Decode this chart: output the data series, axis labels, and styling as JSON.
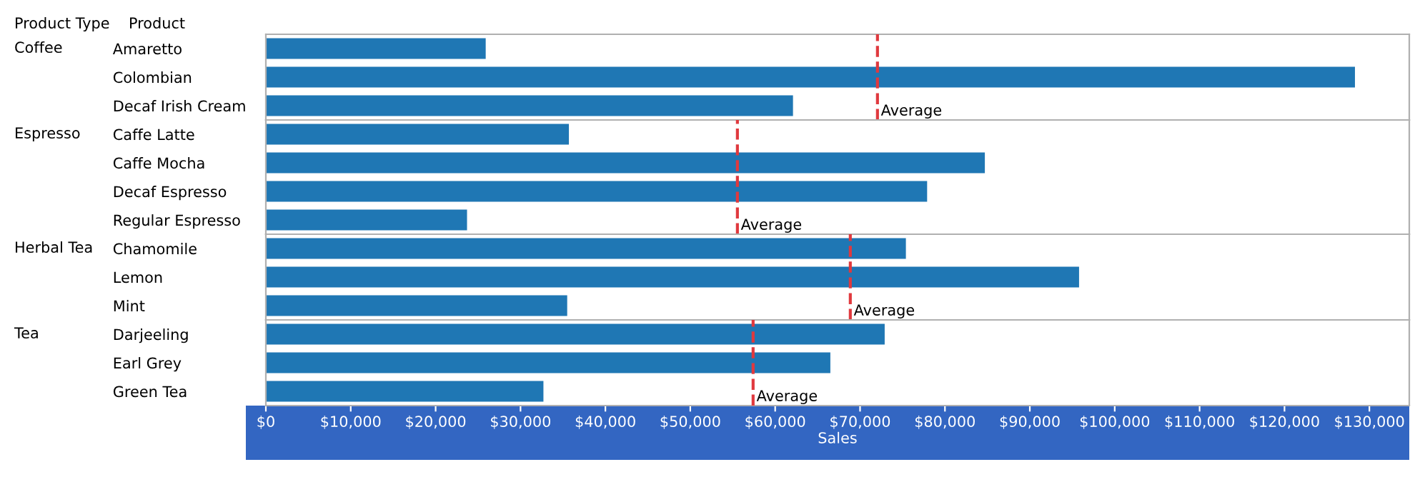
{
  "chart_data": [
    {
      "type": "bar",
      "orientation": "horizontal",
      "ylabel": "Coffee",
      "annotations": [
        "Product Type",
        "Product"
      ],
      "categories": [
        "Amaretto",
        "Colombian",
        "Decaf Irish Cream"
      ],
      "values": [
        25900,
        128300,
        62100
      ],
      "color": "#1f77b4",
      "xlim": [
        0,
        134700
      ],
      "tick_labels": "y",
      "grid": false,
      "legend": false,
      "ref_lines": [
        {
          "axis": "x",
          "value": 72050,
          "label": "Average",
          "color": "#e0393e",
          "line_style": "dashed"
        }
      ]
    },
    {
      "type": "bar",
      "orientation": "horizontal",
      "ylabel": "Espresso",
      "categories": [
        "Caffe Latte",
        "Caffe Mocha",
        "Decaf Espresso",
        "Regular Espresso"
      ],
      "values": [
        35700,
        84700,
        77900,
        23700
      ],
      "color": "#1f77b4",
      "xlim": [
        0,
        134700
      ],
      "tick_labels": "y",
      "grid": false,
      "legend": false,
      "ref_lines": [
        {
          "axis": "x",
          "value": 55550,
          "label": "Average",
          "color": "#e0393e",
          "line_style": "dashed"
        }
      ]
    },
    {
      "type": "bar",
      "orientation": "horizontal",
      "ylabel": "Herbal Tea",
      "categories": [
        "Chamomile",
        "Lemon",
        "Mint"
      ],
      "values": [
        75400,
        95800,
        35500
      ],
      "color": "#1f77b4",
      "xlim": [
        0,
        134700
      ],
      "tick_labels": "y",
      "grid": false,
      "legend": false,
      "ref_lines": [
        {
          "axis": "x",
          "value": 68850,
          "label": "Average",
          "color": "#e0393e",
          "line_style": "dashed"
        }
      ]
    },
    {
      "type": "bar",
      "orientation": "horizontal",
      "ylabel": "Tea",
      "xlabel": "Sales",
      "categories": [
        "Darjeeling",
        "Earl Grey",
        "Green Tea"
      ],
      "values": [
        72900,
        66500,
        32700
      ],
      "color": "#1f77b4",
      "xlim": [
        0,
        134700
      ],
      "xticks": [
        {
          "value": 0,
          "label": "$0"
        },
        {
          "value": 10000,
          "label": "$10,000"
        },
        {
          "value": 20000,
          "label": "$20,000"
        },
        {
          "value": 30000,
          "label": "$30,000"
        },
        {
          "value": 40000,
          "label": "$40,000"
        },
        {
          "value": 50000,
          "label": "$50,000"
        },
        {
          "value": 60000,
          "label": "$60,000"
        },
        {
          "value": 70000,
          "label": "$70,000"
        },
        {
          "value": 80000,
          "label": "$80,000"
        },
        {
          "value": 90000,
          "label": "$90,000"
        },
        {
          "value": 100000,
          "label": "$100,000"
        },
        {
          "value": 110000,
          "label": "$110,000"
        },
        {
          "value": 120000,
          "label": "$120,000"
        },
        {
          "value": 130000,
          "label": "$130,000"
        }
      ],
      "grid": false,
      "legend": false,
      "ref_lines": [
        {
          "axis": "x",
          "value": 57400,
          "label": "Average",
          "color": "#e0393e",
          "line_style": "dashed"
        }
      ]
    }
  ]
}
